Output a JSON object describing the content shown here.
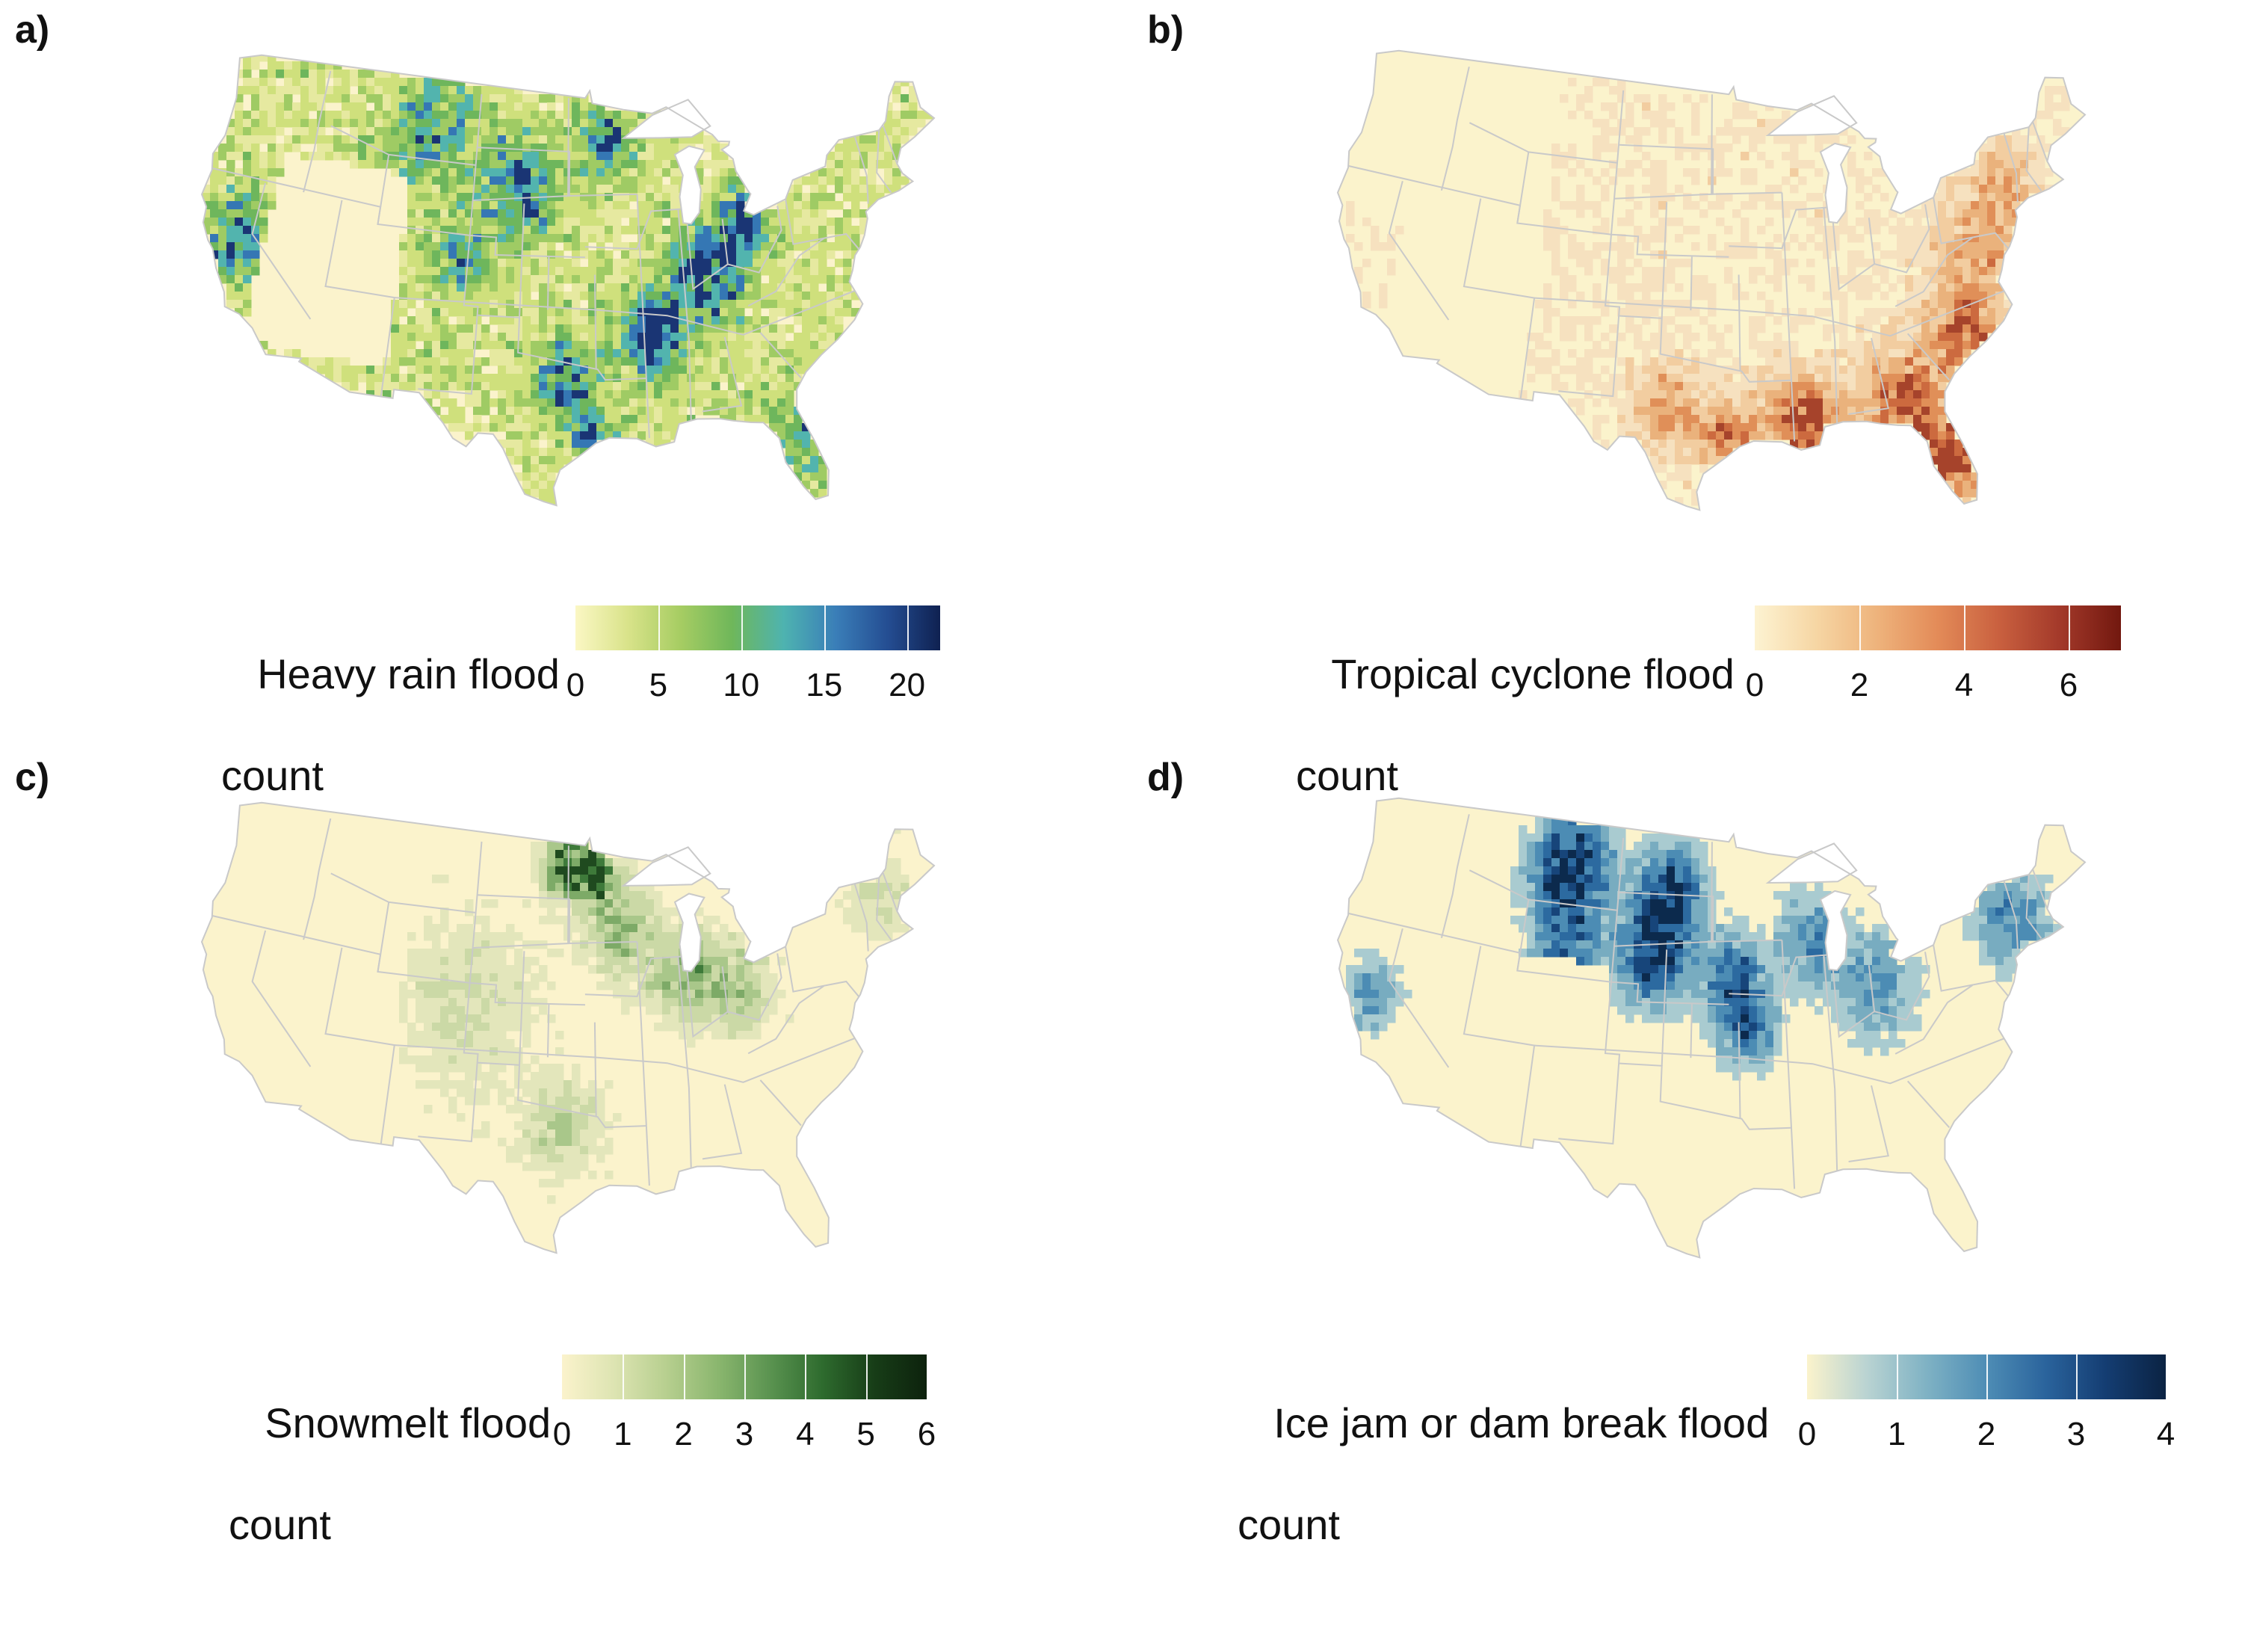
{
  "panels": [
    {
      "id": "a",
      "label": "a)",
      "legend": {
        "title_line1": "Heavy rain flood",
        "title_line2": "count",
        "ticks": [
          "0",
          "5",
          "10",
          "15",
          "20"
        ],
        "tick_values": [
          0,
          5,
          10,
          15,
          20
        ],
        "range": [
          0,
          22
        ],
        "colors": [
          "#fbf7c4",
          "#d9e38a",
          "#a7cd63",
          "#6fb75a",
          "#4eb3b0",
          "#3a7eb8",
          "#244d92",
          "#0f2151"
        ]
      },
      "map": {
        "base_color": "#fbf3cc",
        "palette": [
          "#fbf3cc",
          "#e6e9a0",
          "#cfe07c",
          "#9fcb64",
          "#6eb65c",
          "#52b4ae",
          "#3577b4",
          "#1a3574"
        ],
        "hotspots": [
          {
            "lon": -90.5,
            "lat": 35.5,
            "w": 2.2,
            "amp": 1.0
          },
          {
            "lon": -86.5,
            "lat": 38.8,
            "w": 2.4,
            "amp": 0.85
          },
          {
            "lon": -83.0,
            "lat": 41.5,
            "w": 1.8,
            "amp": 0.75
          },
          {
            "lon": -96.5,
            "lat": 33.0,
            "w": 2.2,
            "amp": 0.6
          },
          {
            "lon": -95.0,
            "lat": 29.8,
            "w": 1.2,
            "amp": 0.65
          },
          {
            "lon": -100.5,
            "lat": 44.0,
            "w": 3.0,
            "amp": 0.6
          },
          {
            "lon": -93.5,
            "lat": 46.5,
            "w": 2.2,
            "amp": 0.55
          },
          {
            "lon": -121.0,
            "lat": 38.5,
            "w": 2.5,
            "amp": 0.55
          },
          {
            "lon": -108.0,
            "lat": 47.0,
            "w": 3.5,
            "amp": 0.45
          },
          {
            "lon": -81.5,
            "lat": 28.5,
            "w": 2.5,
            "amp": 0.4
          },
          {
            "lon": -104.5,
            "lat": 39.5,
            "w": 2.0,
            "amp": 0.45
          }
        ],
        "background_level": 0.25,
        "empty_regions": [
          "west-interior"
        ]
      }
    },
    {
      "id": "b",
      "label": "b)",
      "legend": {
        "title_line1": "Tropical cyclone flood",
        "title_line2": "count",
        "ticks": [
          "0",
          "2",
          "4",
          "6"
        ],
        "tick_values": [
          0,
          2,
          4,
          6
        ],
        "range": [
          0,
          7
        ],
        "colors": [
          "#fdf3d2",
          "#f6d6a4",
          "#eeb37c",
          "#e38b58",
          "#c9603f",
          "#a3392a",
          "#72180f"
        ]
      },
      "map": {
        "base_color": "#fbf3cc",
        "palette": [
          "#fbf3cc",
          "#f6e1bf",
          "#f2cda0",
          "#eab27c",
          "#e08f58",
          "#cc6a3f",
          "#a6432b"
        ],
        "hotspots": [
          {
            "lon": -81.5,
            "lat": 28.0,
            "w": 2.2,
            "amp": 1.0
          },
          {
            "lon": -90.5,
            "lat": 30.5,
            "w": 2.5,
            "amp": 0.85
          },
          {
            "lon": -84.0,
            "lat": 31.5,
            "w": 2.5,
            "amp": 0.75
          },
          {
            "lon": -79.5,
            "lat": 34.5,
            "w": 2.2,
            "amp": 0.7
          },
          {
            "lon": -95.5,
            "lat": 30.0,
            "w": 2.0,
            "amp": 0.6
          },
          {
            "lon": -99.5,
            "lat": 31.5,
            "w": 2.0,
            "amp": 0.55
          },
          {
            "lon": -77.5,
            "lat": 38.5,
            "w": 3.0,
            "amp": 0.45
          },
          {
            "lon": -74.5,
            "lat": 42.0,
            "w": 2.5,
            "amp": 0.35
          }
        ],
        "background_level": 0.12,
        "empty_regions": [
          "west"
        ]
      }
    },
    {
      "id": "c",
      "label": "c)",
      "legend": {
        "title_line1": "Snowmelt flood",
        "title_line2": "count",
        "ticks": [
          "0",
          "1",
          "2",
          "3",
          "4",
          "5",
          "6"
        ],
        "tick_values": [
          0,
          1,
          2,
          3,
          4,
          5,
          6
        ],
        "range": [
          0,
          6
        ],
        "colors": [
          "#fbf3cc",
          "#dde4b2",
          "#b7cf8f",
          "#8ab66e",
          "#5a9350",
          "#2e6b2e",
          "#173d17",
          "#0d220d"
        ]
      },
      "map": {
        "base_color": "#fbf3cc",
        "palette": [
          "#fbf3cc",
          "#e3e6bb",
          "#cbd9a6",
          "#a9c78a",
          "#7daa67",
          "#3e7a3a",
          "#1f4a1f"
        ],
        "hotspots": [
          {
            "lon": -97.0,
            "lat": 47.8,
            "w": 1.6,
            "amp": 1.0
          },
          {
            "lon": -94.5,
            "lat": 47.5,
            "w": 1.6,
            "amp": 0.9
          },
          {
            "lon": -92.5,
            "lat": 44.5,
            "w": 2.5,
            "amp": 0.55
          },
          {
            "lon": -88.0,
            "lat": 41.5,
            "w": 2.5,
            "amp": 0.5
          },
          {
            "lon": -84.0,
            "lat": 40.5,
            "w": 2.5,
            "amp": 0.45
          },
          {
            "lon": -97.0,
            "lat": 33.0,
            "w": 2.5,
            "amp": 0.35
          },
          {
            "lon": -104.0,
            "lat": 40.0,
            "w": 5.0,
            "amp": 0.22
          },
          {
            "lon": -72.0,
            "lat": 44.0,
            "w": 2.5,
            "amp": 0.25
          }
        ],
        "background_level": 0.05,
        "empty_regions": [
          "west",
          "southeast"
        ]
      }
    },
    {
      "id": "d",
      "label": "d)",
      "legend": {
        "title_line1": "Ice jam or dam break flood",
        "title_line2": "count",
        "ticks": [
          "0",
          "1",
          "2",
          "3",
          "4"
        ],
        "tick_values": [
          0,
          1,
          2,
          3,
          4
        ],
        "range": [
          0,
          4
        ],
        "colors": [
          "#fbf3cc",
          "#b9d3d2",
          "#7fb2c4",
          "#4e8db5",
          "#2a639c",
          "#143d72",
          "#0b2343"
        ]
      },
      "map": {
        "base_color": "#fbf3cc",
        "palette": [
          "#fbf3cc",
          "#a9cbd0",
          "#78acc0",
          "#4c8cb4",
          "#2c6aa0",
          "#17457a",
          "#0c2a4d"
        ],
        "hotspots": [
          {
            "lon": -108.0,
            "lat": 47.0,
            "w": 3.0,
            "amp": 1.0
          },
          {
            "lon": -100.0,
            "lat": 46.0,
            "w": 2.5,
            "amp": 0.95
          },
          {
            "lon": -101.0,
            "lat": 42.5,
            "w": 2.5,
            "amp": 0.85
          },
          {
            "lon": -95.0,
            "lat": 41.5,
            "w": 2.2,
            "amp": 0.75
          },
          {
            "lon": -94.0,
            "lat": 38.5,
            "w": 2.0,
            "amp": 0.6
          },
          {
            "lon": -89.0,
            "lat": 43.5,
            "w": 2.5,
            "amp": 0.45
          },
          {
            "lon": -84.5,
            "lat": 40.5,
            "w": 3.0,
            "amp": 0.4
          },
          {
            "lon": -73.5,
            "lat": 43.0,
            "w": 3.0,
            "amp": 0.45
          },
          {
            "lon": -121.0,
            "lat": 38.0,
            "w": 2.0,
            "amp": 0.45
          },
          {
            "lon": -107.5,
            "lat": 42.5,
            "w": 2.5,
            "amp": 0.55
          }
        ],
        "background_level": 0.02,
        "empty_regions": [
          "southwest",
          "south"
        ]
      }
    }
  ]
}
